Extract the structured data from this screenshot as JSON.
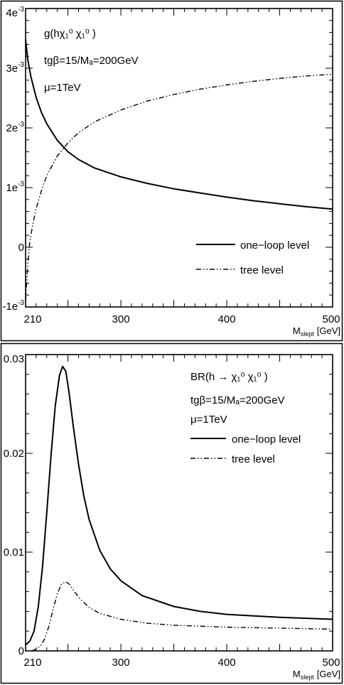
{
  "chart_data": [
    {
      "type": "line",
      "title_lines": [
        "g(hχ₁⁰ χ₁⁰ )",
        "tgβ=15/Mₐ=200GeV",
        "μ=1TeV"
      ],
      "xlabel": "M_slept [GeV]",
      "xlabel_main": "M",
      "xlabel_sub": "slept",
      "xlabel_unit": "[GeV]",
      "ylabel": "",
      "xlim": [
        210,
        500
      ],
      "ylim": [
        -0.001,
        0.004
      ],
      "x_tick_labels": [
        "210",
        "300",
        "400",
        "500"
      ],
      "x_tick_values": [
        210,
        300,
        400,
        500
      ],
      "y_tick_values": [
        -0.001,
        0,
        0.001,
        0.002,
        0.003,
        0.004
      ],
      "y_tick_labels": [
        {
          "base": "-1e",
          "exp": "-3"
        },
        {
          "base": "0",
          "exp": ""
        },
        {
          "base": "1e",
          "exp": "-3"
        },
        {
          "base": "2e",
          "exp": "-3"
        },
        {
          "base": "3e",
          "exp": "-3"
        },
        {
          "base": "4e",
          "exp": "-3"
        }
      ],
      "legend_placement": "bottom-right",
      "series": [
        {
          "name": "one−loop level",
          "style": "solid",
          "x": [
            210,
            212,
            215,
            220,
            225,
            230,
            240,
            250,
            260,
            275,
            300,
            325,
            350,
            375,
            400,
            425,
            450,
            475,
            500
          ],
          "y": [
            0.00348,
            0.00315,
            0.00286,
            0.00251,
            0.00226,
            0.00207,
            0.00179,
            0.0016,
            0.00147,
            0.00133,
            0.00118,
            0.00107,
            0.00098,
            0.00091,
            0.00084,
            0.00078,
            0.00073,
            0.00068,
            0.00064
          ]
        },
        {
          "name": "tree level",
          "style": "dashdot",
          "x": [
            210,
            211,
            212,
            214,
            217,
            220,
            225,
            230,
            240,
            250,
            260,
            275,
            300,
            325,
            350,
            375,
            400,
            425,
            450,
            475,
            500
          ],
          "y": [
            -0.0009,
            -0.0006,
            -0.0003,
            0.0001,
            0.0004,
            0.00065,
            0.00095,
            0.0012,
            0.00153,
            0.00175,
            0.00192,
            0.0021,
            0.0023,
            0.00245,
            0.00256,
            0.00265,
            0.00272,
            0.00278,
            0.00283,
            0.00287,
            0.0029
          ]
        }
      ]
    },
    {
      "type": "line",
      "title_lines": [
        "BR(h → χ₁⁰ χ₁⁰ )",
        "tgβ=15/Mₐ=200GeV",
        "μ=1TeV"
      ],
      "xlabel": "M_slept [GeV]",
      "xlabel_main": "M",
      "xlabel_sub": "slept",
      "xlabel_unit": "[GeV]",
      "ylabel": "",
      "xlim": [
        210,
        500
      ],
      "ylim": [
        0,
        0.03
      ],
      "x_tick_labels": [
        "210",
        "300",
        "400",
        "500"
      ],
      "x_tick_values": [
        210,
        300,
        400,
        500
      ],
      "y_tick_values": [
        0,
        0.01,
        0.02,
        0.03
      ],
      "y_tick_labels": [
        {
          "base": "0",
          "exp": ""
        },
        {
          "base": "0.01",
          "exp": ""
        },
        {
          "base": "0.02",
          "exp": ""
        },
        {
          "base": "0.03",
          "exp": ""
        }
      ],
      "legend_placement": "top-right",
      "series": [
        {
          "name": "one−loop level",
          "style": "solid",
          "x": [
            210,
            214,
            218,
            222,
            226,
            230,
            234,
            238,
            242,
            245,
            248,
            251,
            255,
            260,
            265,
            270,
            280,
            290,
            300,
            320,
            350,
            375,
            400,
            450,
            500
          ],
          "y": [
            0.0006,
            0.001,
            0.002,
            0.0045,
            0.0085,
            0.014,
            0.0198,
            0.0248,
            0.0279,
            0.0288,
            0.0283,
            0.0262,
            0.0228,
            0.0189,
            0.0157,
            0.0133,
            0.0102,
            0.0083,
            0.0071,
            0.0056,
            0.0045,
            0.004,
            0.0037,
            0.0034,
            0.0032
          ]
        },
        {
          "name": "tree level",
          "style": "dashdot",
          "x": [
            216,
            220,
            224,
            228,
            232,
            236,
            240,
            244,
            248,
            252,
            256,
            262,
            270,
            280,
            300,
            325,
            350,
            400,
            450,
            500
          ],
          "y": [
            0.0,
            0.0002,
            0.0005,
            0.0012,
            0.0025,
            0.0042,
            0.0058,
            0.0068,
            0.007,
            0.0067,
            0.006,
            0.0052,
            0.0044,
            0.0038,
            0.0032,
            0.0028,
            0.0026,
            0.0024,
            0.0023,
            0.0022
          ]
        }
      ]
    }
  ]
}
